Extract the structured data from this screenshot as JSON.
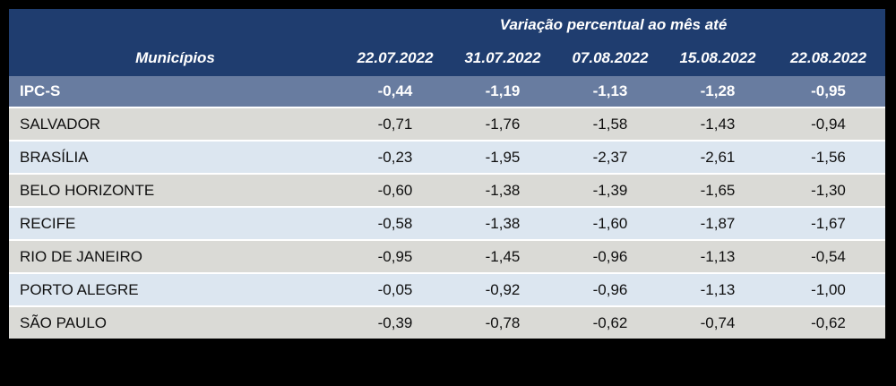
{
  "colors": {
    "page_background": "#000000",
    "header_navy": "#1F3D6F",
    "summary_slate": "#687CA0",
    "row_gray": "#DADAD6",
    "row_light_blue": "#DCE6F0",
    "separator_white": "#FFFFFF",
    "header_text": "#FFFFFF",
    "body_text": "#101010"
  },
  "table": {
    "title": "Variação percentual ao mês até",
    "name_column_header": "Municípios",
    "date_columns": [
      "22.07.2022",
      "31.07.2022",
      "07.08.2022",
      "15.08.2022",
      "22.08.2022"
    ],
    "summary_row": {
      "name": "IPC-S",
      "values": [
        "-0,44",
        "-1,19",
        "-1,13",
        "-1,28",
        "-0,95"
      ]
    },
    "rows": [
      {
        "name": "SALVADOR",
        "values": [
          "-0,71",
          "-1,76",
          "-1,58",
          "-1,43",
          "-0,94"
        ]
      },
      {
        "name": "BRASÍLIA",
        "values": [
          "-0,23",
          "-1,95",
          "-2,37",
          "-2,61",
          "-1,56"
        ]
      },
      {
        "name": "BELO HORIZONTE",
        "values": [
          "-0,60",
          "-1,38",
          "-1,39",
          "-1,65",
          "-1,30"
        ]
      },
      {
        "name": "RECIFE",
        "values": [
          "-0,58",
          "-1,38",
          "-1,60",
          "-1,87",
          "-1,67"
        ]
      },
      {
        "name": "RIO DE JANEIRO",
        "values": [
          "-0,95",
          "-1,45",
          "-0,96",
          "-1,13",
          "-0,54"
        ]
      },
      {
        "name": "PORTO ALEGRE",
        "values": [
          "-0,05",
          "-0,92",
          "-0,96",
          "-1,13",
          "-1,00"
        ]
      },
      {
        "name": "SÃO PAULO",
        "values": [
          "-0,39",
          "-0,78",
          "-0,62",
          "-0,74",
          "-0,62"
        ]
      }
    ]
  },
  "chart_data": {
    "type": "table",
    "title": "Variação percentual ao mês até",
    "row_header_label": "Municípios",
    "categories": [
      "22.07.2022",
      "31.07.2022",
      "07.08.2022",
      "15.08.2022",
      "22.08.2022"
    ],
    "series": [
      {
        "name": "IPC-S",
        "values": [
          -0.44,
          -1.19,
          -1.13,
          -1.28,
          -0.95
        ]
      },
      {
        "name": "SALVADOR",
        "values": [
          -0.71,
          -1.76,
          -1.58,
          -1.43,
          -0.94
        ]
      },
      {
        "name": "BRASÍLIA",
        "values": [
          -0.23,
          -1.95,
          -2.37,
          -2.61,
          -1.56
        ]
      },
      {
        "name": "BELO HORIZONTE",
        "values": [
          -0.6,
          -1.38,
          -1.39,
          -1.65,
          -1.3
        ]
      },
      {
        "name": "RECIFE",
        "values": [
          -0.58,
          -1.38,
          -1.6,
          -1.87,
          -1.67
        ]
      },
      {
        "name": "RIO DE JANEIRO",
        "values": [
          -0.95,
          -1.45,
          -0.96,
          -1.13,
          -0.54
        ]
      },
      {
        "name": "PORTO ALEGRE",
        "values": [
          -0.05,
          -0.92,
          -0.96,
          -1.13,
          -1.0
        ]
      },
      {
        "name": "SÃO PAULO",
        "values": [
          -0.39,
          -0.78,
          -0.62,
          -0.74,
          -0.62
        ]
      }
    ],
    "notes": "Weekly IPC-S percent change table; negative values, comma decimal separator in display"
  }
}
